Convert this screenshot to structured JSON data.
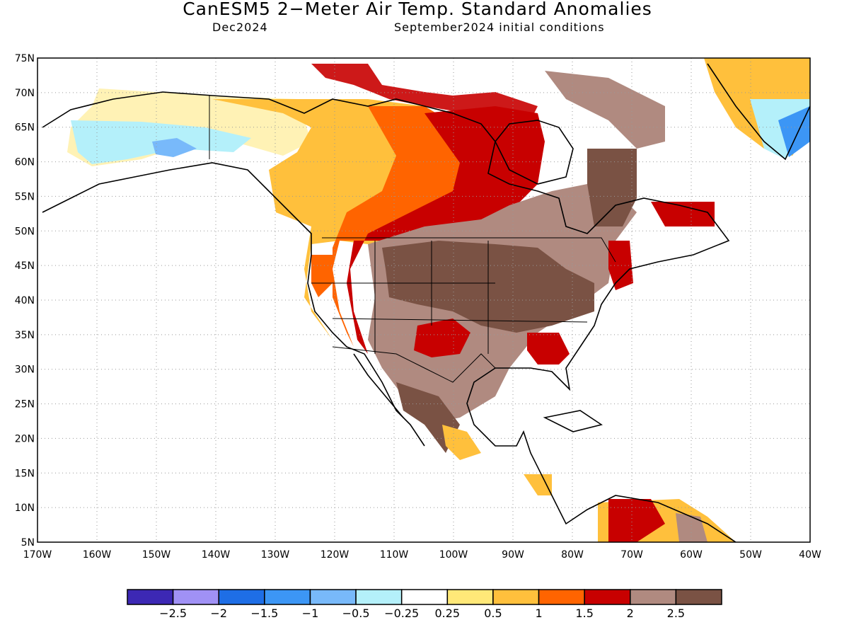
{
  "title": "CanESM5 2−Meter Air Temp. Standard Anomalies",
  "subtitle_left": "Dec2024",
  "subtitle_right": "September2024 initial conditions",
  "map": {
    "lon_range": [
      -170,
      -40
    ],
    "lat_range": [
      5,
      75
    ],
    "lat_labels": [
      "75N",
      "70N",
      "65N",
      "60N",
      "55N",
      "50N",
      "45N",
      "40N",
      "35N",
      "30N",
      "25N",
      "20N",
      "15N",
      "10N",
      "5N"
    ],
    "lon_labels": [
      "170W",
      "160W",
      "150W",
      "140W",
      "130W",
      "120W",
      "110W",
      "100W",
      "90W",
      "80W",
      "70W",
      "60W",
      "50W",
      "40W"
    ]
  },
  "legend": {
    "colors": [
      "#3c28b4",
      "#a091f5",
      "#1e6ee6",
      "#3c96f5",
      "#78b9fa",
      "#b4f0fa",
      "#ffffff",
      "#ffe878",
      "#ffc03c",
      "#ff6400",
      "#c80000",
      "#b08a80",
      "#7a5244"
    ],
    "labels": [
      "−2.5",
      "−2",
      "−1.5",
      "−1",
      "−0.5",
      "−0.25",
      "0.25",
      "0.5",
      "1",
      "1.5",
      "2",
      "2.5"
    ]
  }
}
